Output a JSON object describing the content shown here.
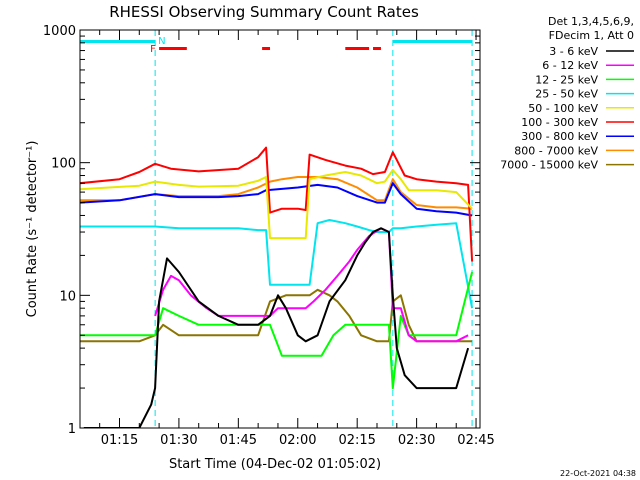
{
  "chart_data": {
    "type": "line",
    "title": "RHESSI Observing Summary Count Rates",
    "xlabel": "Start Time (04-Dec-02 01:05:02)",
    "ylabel": "Count Rate (s⁻¹ detector⁻¹)",
    "y_scale": "log",
    "ylim": [
      1,
      1000
    ],
    "xlim": [
      "01:05:02",
      "02:46:00"
    ],
    "y_ticks": [
      "1",
      "10",
      "100",
      "1000"
    ],
    "x_ticks": [
      "01:15",
      "01:30",
      "01:45",
      "02:00",
      "02:15",
      "02:30",
      "02:45"
    ],
    "legend_header": [
      "Det 1,3,4,5,6,9,",
      "FDecim 1, Att 0"
    ],
    "legend_position": "right",
    "flag_labels": [
      {
        "text": "N",
        "color": "#00e5ee"
      },
      {
        "text": "F",
        "color": "#ff0000"
      }
    ],
    "flags": {
      "night": [
        [
          "01:05",
          "01:24"
        ],
        [
          "02:24",
          "02:44"
        ]
      ],
      "flare": [
        [
          "01:25",
          "01:32"
        ],
        [
          "01:51",
          "01:53"
        ],
        [
          "02:12",
          "02:18"
        ],
        [
          "02:19",
          "02:21"
        ]
      ]
    },
    "series": [
      {
        "name": "3 - 6 keV",
        "color": "#000000",
        "x": [
          "01:06",
          "01:20",
          "01:23",
          "01:24",
          "01:25",
          "01:27",
          "01:30",
          "01:35",
          "01:40",
          "01:45",
          "01:50",
          "01:53",
          "01:55",
          "01:57",
          "02:00",
          "02:02",
          "02:05",
          "02:08",
          "02:12",
          "02:15",
          "02:17",
          "02:19",
          "02:21",
          "02:23",
          "02:24",
          "02:25",
          "02:27",
          "02:30",
          "02:35",
          "02:40",
          "02:43"
        ],
        "y": [
          1,
          1,
          1.5,
          2,
          9,
          19,
          15,
          9,
          7,
          6,
          6,
          7,
          10,
          8,
          5,
          4.5,
          5,
          9,
          13,
          20,
          25,
          30,
          32,
          30,
          10,
          4,
          2.5,
          2,
          2,
          2,
          4
        ]
      },
      {
        "name": "6 - 12 keV",
        "color": "#ff00ff",
        "x": [
          "01:24",
          "01:26",
          "01:28",
          "01:30",
          "01:33",
          "01:37",
          "01:40",
          "01:45",
          "01:50",
          "01:53",
          "01:55",
          "01:57",
          "02:00",
          "02:02",
          "02:04",
          "02:07",
          "02:10",
          "02:13",
          "02:15",
          "02:18",
          "02:21",
          "02:23",
          "02:24",
          "02:26",
          "02:28",
          "02:30",
          "02:35",
          "02:40",
          "02:43"
        ],
        "y": [
          7,
          11,
          14,
          13,
          10,
          8,
          7,
          7,
          7,
          7,
          8,
          8,
          8,
          8,
          9,
          11,
          14,
          18,
          22,
          28,
          32,
          30,
          8,
          8,
          5,
          4.5,
          4.5,
          4.5,
          5
        ]
      },
      {
        "name": "12 - 25 keV",
        "color": "#00ff00",
        "x": [
          "01:05",
          "01:15",
          "01:20",
          "01:24",
          "01:26",
          "01:30",
          "01:35",
          "01:40",
          "01:45",
          "01:50",
          "01:53",
          "01:56",
          "02:00",
          "02:03",
          "02:06",
          "02:09",
          "02:12",
          "02:15",
          "02:18",
          "02:21",
          "02:23",
          "02:24",
          "02:26",
          "02:28",
          "02:30",
          "02:35",
          "02:40",
          "02:44"
        ],
        "y": [
          5,
          5,
          5,
          5,
          8,
          7,
          6,
          6,
          6,
          6,
          6,
          3.5,
          3.5,
          3.5,
          3.5,
          5,
          6,
          6,
          6,
          6,
          6,
          2,
          7,
          5,
          5,
          5,
          5,
          15
        ]
      },
      {
        "name": "25 - 50 keV",
        "color": "#00e5ee",
        "x": [
          "01:05",
          "01:15",
          "01:24",
          "01:30",
          "01:40",
          "01:45",
          "01:50",
          "01:52",
          "01:53",
          "01:55",
          "02:00",
          "02:03",
          "02:05",
          "02:08",
          "02:12",
          "02:15",
          "02:18",
          "02:20",
          "02:23",
          "02:24",
          "02:26",
          "02:30",
          "02:35",
          "02:40",
          "02:44"
        ],
        "y": [
          33,
          33,
          33,
          32,
          32,
          32,
          31,
          31,
          12,
          12,
          12,
          12,
          35,
          37,
          35,
          33,
          31,
          30,
          30,
          32,
          32,
          33,
          34,
          35,
          8
        ]
      },
      {
        "name": "50 - 100 keV",
        "color": "#e8e800",
        "x": [
          "01:05",
          "01:20",
          "01:24",
          "01:30",
          "01:35",
          "01:45",
          "01:50",
          "01:52",
          "01:53",
          "01:57",
          "02:02",
          "02:03",
          "02:07",
          "02:12",
          "02:16",
          "02:20",
          "02:22",
          "02:24",
          "02:26",
          "02:28",
          "02:30",
          "02:35",
          "02:40",
          "02:44"
        ],
        "y": [
          63,
          67,
          72,
          68,
          66,
          67,
          73,
          78,
          27,
          27,
          27,
          75,
          80,
          85,
          80,
          70,
          72,
          88,
          75,
          62,
          62,
          62,
          60,
          45
        ]
      },
      {
        "name": "100 - 300 keV",
        "color": "#ff0000",
        "x": [
          "01:05",
          "01:15",
          "01:20",
          "01:24",
          "01:28",
          "01:35",
          "01:45",
          "01:50",
          "01:52",
          "01:53",
          "01:56",
          "02:00",
          "02:02",
          "02:03",
          "02:07",
          "02:12",
          "02:16",
          "02:19",
          "02:22",
          "02:24",
          "02:25",
          "02:27",
          "02:30",
          "02:35",
          "02:40",
          "02:43",
          "02:44"
        ],
        "y": [
          70,
          75,
          85,
          98,
          90,
          86,
          90,
          110,
          130,
          42,
          45,
          45,
          44,
          115,
          105,
          95,
          90,
          82,
          85,
          120,
          105,
          80,
          75,
          72,
          70,
          68,
          18
        ]
      },
      {
        "name": "300 - 800 keV",
        "color": "#0000ff",
        "x": [
          "01:05",
          "01:15",
          "01:24",
          "01:30",
          "01:40",
          "01:45",
          "01:50",
          "01:52",
          "02:00",
          "02:05",
          "02:10",
          "02:15",
          "02:20",
          "02:22",
          "02:24",
          "02:26",
          "02:30",
          "02:35",
          "02:40",
          "02:44"
        ],
        "y": [
          50,
          52,
          58,
          55,
          55,
          56,
          58,
          62,
          65,
          68,
          65,
          56,
          50,
          50,
          70,
          58,
          45,
          43,
          42,
          40
        ]
      },
      {
        "name": "800 - 7000 keV",
        "color": "#ff8c00",
        "x": [
          "01:05",
          "01:15",
          "01:24",
          "01:30",
          "01:40",
          "01:45",
          "01:50",
          "01:53",
          "01:56",
          "02:00",
          "02:05",
          "02:10",
          "02:15",
          "02:20",
          "02:22",
          "02:24",
          "02:26",
          "02:30",
          "02:35",
          "02:40",
          "02:44"
        ],
        "y": [
          52,
          52,
          58,
          56,
          56,
          58,
          65,
          72,
          75,
          78,
          78,
          75,
          65,
          52,
          52,
          75,
          60,
          48,
          46,
          46,
          45
        ]
      },
      {
        "name": "7000 - 15000 keV",
        "color": "#8b7500",
        "x": [
          "01:05",
          "01:15",
          "01:20",
          "01:24",
          "01:26",
          "01:30",
          "01:35",
          "01:40",
          "01:45",
          "01:50",
          "01:53",
          "01:57",
          "02:00",
          "02:03",
          "02:05",
          "02:08",
          "02:10",
          "02:13",
          "02:16",
          "02:20",
          "02:23",
          "02:24",
          "02:26",
          "02:28",
          "02:30",
          "02:35",
          "02:40",
          "02:44"
        ],
        "y": [
          4.5,
          4.5,
          4.5,
          5,
          6,
          5,
          5,
          5,
          5,
          5,
          9,
          10,
          10,
          10,
          11,
          10,
          9,
          7,
          5,
          4.5,
          4.5,
          9,
          10,
          6,
          4.5,
          4.5,
          4.5,
          4.5
        ]
      }
    ]
  },
  "footer_timestamp": "22-Oct-2021 04:38"
}
